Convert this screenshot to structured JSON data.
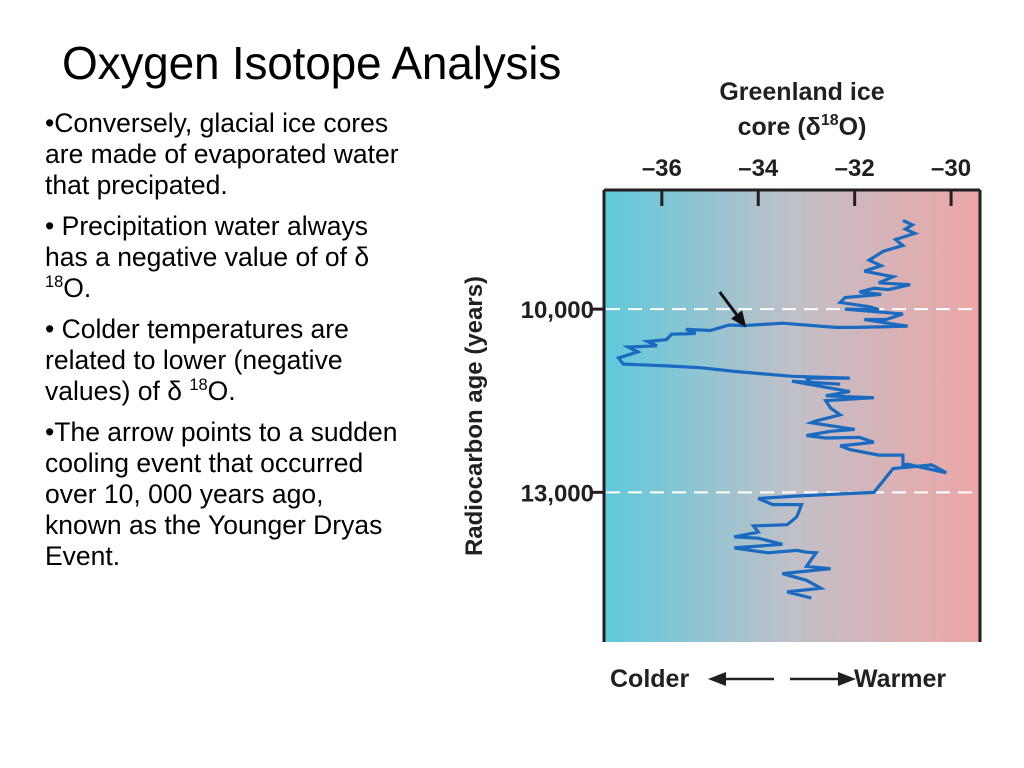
{
  "slide": {
    "title": "Oxygen Isotope Analysis",
    "bullets": [
      {
        "parts": [
          {
            "text": "•Conversely, glacial ice cores are made of evaporated water that precipated."
          }
        ]
      },
      {
        "parts": [
          {
            "text": "• Precipitation water always has a negative value of of δ "
          },
          {
            "sup": "18"
          },
          {
            "text": "O."
          }
        ]
      },
      {
        "parts": [
          {
            "text": "• Colder temperatures are related to lower (negative values) of δ "
          },
          {
            "sup": "18"
          },
          {
            "text": "O."
          }
        ]
      },
      {
        "parts": [
          {
            "text": "•The arrow points to a sudden cooling event that occurred over 10, 000 years ago, known as the Younger Dryas Event."
          }
        ]
      }
    ]
  },
  "chart_data": {
    "type": "line",
    "title": [
      "Greenland ice",
      "core (δ",
      "18",
      "O)"
    ],
    "ylabel": "Radiocarbon age (years)",
    "x_ticks": [
      -36,
      -34,
      -32,
      -30
    ],
    "x_tick_labels": [
      "–36",
      "–34",
      "–32",
      "–30"
    ],
    "y_ticks": [
      10000,
      13000
    ],
    "y_tick_labels": [
      "10,000",
      "13,000"
    ],
    "xlim": [
      -37.2,
      -29.4
    ],
    "ylim": [
      8050,
      15450
    ],
    "y_inverted": true,
    "reference_lines_y": [
      10000,
      13000
    ],
    "reference_line_color": "#ffffff",
    "background_gradient": [
      "#5ec9dc",
      "#c0c0c8",
      "#eda6a6"
    ],
    "line_color": "#1a6bbf",
    "arrow": {
      "from": [
        -34.8,
        9720
      ],
      "to": [
        -34.25,
        10300
      ]
    },
    "bottom_legend": {
      "left": "Colder",
      "right": "Warmer"
    },
    "series": [
      {
        "x": [
          -31.0,
          -30.8,
          -30.95,
          -30.75,
          -31.15,
          -31.0,
          -31.4,
          -31.7,
          -31.45,
          -31.8,
          -31.2,
          -31.5,
          -30.85,
          -31.3,
          -31.6,
          -31.9,
          -31.45,
          -32.2,
          -32.3,
          -31.7,
          -31.5,
          -32.2,
          -31.0,
          -31.35,
          -31.8,
          -30.9,
          -32.0,
          -32.4,
          -33.5,
          -34.3,
          -34.6,
          -35.0,
          -35.5,
          -35.3,
          -35.8,
          -35.9,
          -36.3,
          -36.1,
          -36.7,
          -36.5,
          -36.9,
          -36.8,
          -35.9,
          -35.2,
          -34.5,
          -33.3,
          -32.1,
          -33.0,
          -32.9,
          -32.3,
          -33.3,
          -32.1,
          -32.6,
          -31.6,
          -32.6,
          -32.5,
          -32.3,
          -32.8,
          -32.9,
          -32.0,
          -32.5,
          -33.0,
          -32.6,
          -31.9,
          -31.6,
          -32.3,
          -32.1,
          -31.5,
          -31.0,
          -31.0,
          -30.9,
          -30.1,
          -30.4,
          -31.2,
          -31.6,
          -33.2,
          -34.0,
          -33.7,
          -33.1,
          -33.2,
          -33.4,
          -34.1,
          -34.0,
          -34.5,
          -34.0,
          -33.5,
          -34.5,
          -33.8,
          -33.2,
          -33.0,
          -32.8,
          -33.0,
          -32.5,
          -33.5,
          -33.0,
          -32.7,
          -33.4,
          -32.9
        ],
        "y": [
          8550,
          8620,
          8690,
          8760,
          8860,
          8960,
          9050,
          9200,
          9290,
          9380,
          9470,
          9570,
          9600,
          9680,
          9660,
          9720,
          9760,
          9810,
          9890,
          9960,
          10010,
          10000,
          10080,
          10170,
          10170,
          10280,
          10300,
          10300,
          10230,
          10270,
          10260,
          10350,
          10330,
          10400,
          10410,
          10500,
          10530,
          10600,
          10620,
          10700,
          10800,
          10900,
          10930,
          10960,
          11020,
          11100,
          11130,
          11130,
          11200,
          11230,
          11180,
          11350,
          11420,
          11450,
          11500,
          11620,
          11730,
          11830,
          11860,
          11970,
          12000,
          12070,
          12110,
          12100,
          12180,
          12240,
          12300,
          12390,
          12390,
          12550,
          12540,
          12680,
          12550,
          12610,
          13000,
          13060,
          13100,
          13200,
          13200,
          13400,
          13530,
          13550,
          13650,
          13730,
          13750,
          13850,
          13910,
          13990,
          13950,
          13980,
          13990,
          14210,
          14250,
          14330,
          14440,
          14570,
          14630,
          14730
        ]
      }
    ]
  }
}
